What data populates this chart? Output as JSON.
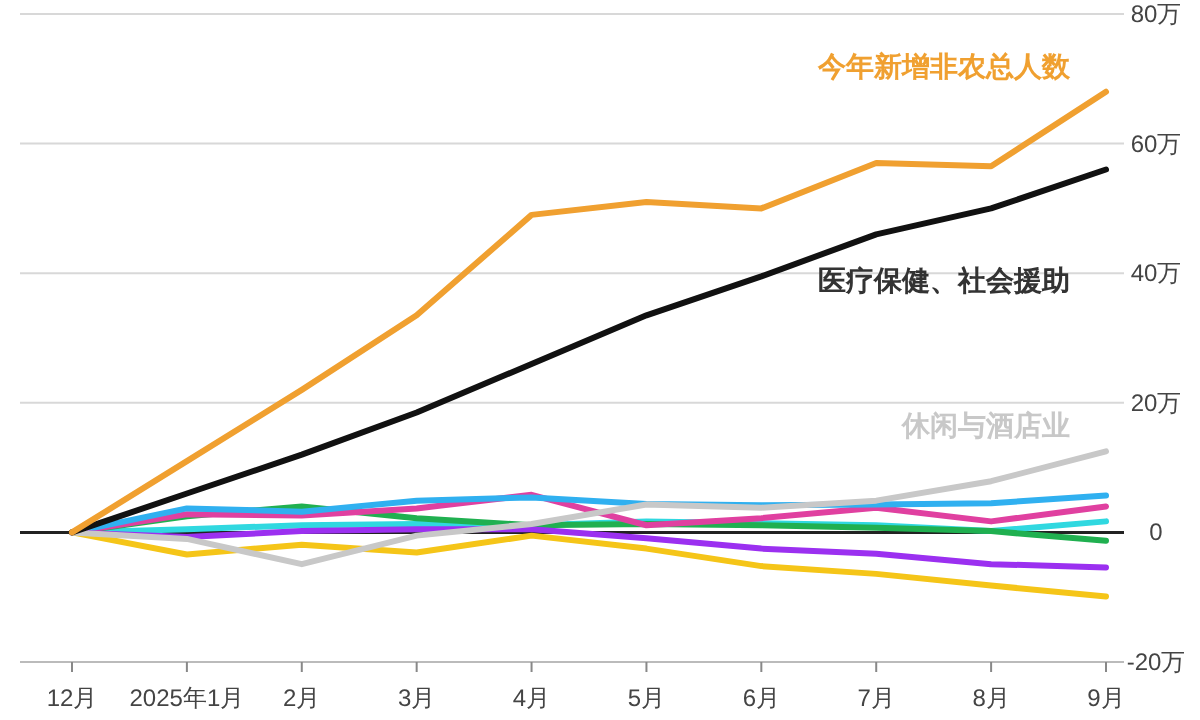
{
  "chart_data": {
    "type": "line",
    "categories": [
      "12月",
      "2025年1月",
      "2月",
      "3月",
      "4月",
      "5月",
      "6月",
      "7月",
      "8月",
      "9月"
    ],
    "ylim": [
      -20,
      80
    ],
    "yticks": [
      {
        "value": -20,
        "label": "-20万"
      },
      {
        "value": 0,
        "label": "0"
      },
      {
        "value": 20,
        "label": "20万"
      },
      {
        "value": 40,
        "label": "40万"
      },
      {
        "value": 60,
        "label": "60万"
      },
      {
        "value": 80,
        "label": "80万"
      }
    ],
    "grid": "y",
    "ref_lines": [
      {
        "axis": "y",
        "value": 0,
        "color": "#222222"
      }
    ],
    "series": [
      {
        "name": "今年新增非农总人数",
        "color": "#f0a030",
        "values": [
          0,
          11,
          22,
          33.5,
          49,
          51,
          50,
          57,
          56.5,
          68
        ]
      },
      {
        "name": "医疗保健、社会援助",
        "color": "#111111",
        "values": [
          0,
          6,
          12,
          18.5,
          26,
          33.5,
          39.5,
          46,
          50,
          56
        ]
      },
      {
        "name": "休闲与酒店业",
        "color": "#c8c8c8",
        "values": [
          0,
          -1,
          -4.9,
          -0.5,
          1.3,
          4.3,
          3.8,
          4.9,
          7.9,
          12.5
        ]
      },
      {
        "color": "#f5c518",
        "values": [
          0,
          -3.4,
          -1.9,
          -3.1,
          -0.5,
          -2.5,
          -5.2,
          -6.4,
          -8.2,
          -9.9
        ]
      },
      {
        "color": "#9b30f0",
        "values": [
          0,
          -0.7,
          0.2,
          0.5,
          0.5,
          -0.9,
          -2.5,
          -3.3,
          -4.9,
          -5.4
        ]
      },
      {
        "color": "#30b0f0",
        "values": [
          0,
          3.7,
          3.2,
          4.9,
          5.4,
          4.4,
          4.2,
          4.3,
          4.5,
          5.7
        ]
      },
      {
        "color": "#e040a0",
        "values": [
          0,
          2.8,
          2.6,
          3.7,
          5.8,
          1.1,
          2.2,
          3.8,
          1.7,
          4.0
        ]
      },
      {
        "color": "#20b050",
        "values": [
          0,
          2.5,
          4.0,
          2.2,
          1.1,
          1.3,
          1.1,
          0.7,
          0.2,
          -1.3
        ]
      },
      {
        "color": "#30d8e0",
        "values": [
          0,
          0.5,
          1.1,
          1.3,
          1.1,
          1.7,
          1.4,
          1.1,
          0.2,
          1.7
        ]
      }
    ]
  }
}
